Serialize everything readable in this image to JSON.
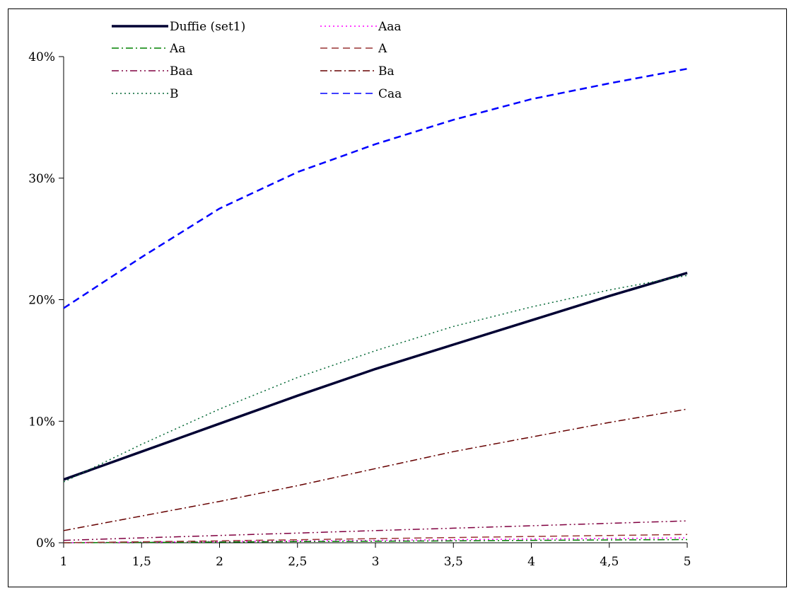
{
  "chart_data": {
    "type": "line",
    "title": "",
    "xlabel": "",
    "ylabel": "",
    "xlim": [
      1,
      5
    ],
    "ylim": [
      0,
      0.4
    ],
    "x_ticks": [
      {
        "value": 1,
        "label": "1"
      },
      {
        "value": 1.5,
        "label": "1,5"
      },
      {
        "value": 2,
        "label": "2"
      },
      {
        "value": 2.5,
        "label": "2,5"
      },
      {
        "value": 3,
        "label": "3"
      },
      {
        "value": 3.5,
        "label": "3,5"
      },
      {
        "value": 4,
        "label": "4"
      },
      {
        "value": 4.5,
        "label": "4,5"
      },
      {
        "value": 5,
        "label": "5"
      }
    ],
    "y_ticks": [
      {
        "value": 0,
        "label": "0%"
      },
      {
        "value": 0.1,
        "label": "10%"
      },
      {
        "value": 0.2,
        "label": "20%"
      },
      {
        "value": 0.3,
        "label": "30%"
      },
      {
        "value": 0.4,
        "label": "40%"
      }
    ],
    "grid": false,
    "legend_position": "top",
    "x": [
      1,
      1.5,
      2,
      2.5,
      3,
      3.5,
      4,
      4.5,
      5
    ],
    "series": [
      {
        "name": "Duffie (set1)",
        "color": "#000033",
        "dash": "solid",
        "values": [
          0.052,
          0.075,
          0.098,
          0.121,
          0.143,
          0.163,
          0.183,
          0.203,
          0.222
        ]
      },
      {
        "name": "Aaa",
        "color": "#ff00ff",
        "dash": "dot",
        "values": [
          0.0,
          0.0005,
          0.001,
          0.0015,
          0.002,
          0.0025,
          0.003,
          0.0035,
          0.004
        ]
      },
      {
        "name": "Aa",
        "color": "#008000",
        "dash": "dashdot",
        "values": [
          0.0,
          0.0003,
          0.0006,
          0.001,
          0.0013,
          0.0016,
          0.002,
          0.0023,
          0.0026
        ]
      },
      {
        "name": "A",
        "color": "#993333",
        "dash": "dash",
        "values": [
          0.0,
          0.0008,
          0.0016,
          0.0025,
          0.0034,
          0.0043,
          0.0052,
          0.006,
          0.0068
        ]
      },
      {
        "name": "Baa",
        "color": "#800040",
        "dash": "dashdotdot",
        "values": [
          0.002,
          0.004,
          0.006,
          0.008,
          0.01,
          0.012,
          0.014,
          0.016,
          0.018
        ]
      },
      {
        "name": "Ba",
        "color": "#660000",
        "dash": "dashdot",
        "values": [
          0.01,
          0.022,
          0.034,
          0.047,
          0.061,
          0.075,
          0.087,
          0.099,
          0.11
        ]
      },
      {
        "name": "B",
        "color": "#006633",
        "dash": "dot",
        "values": [
          0.05,
          0.081,
          0.11,
          0.136,
          0.158,
          0.178,
          0.194,
          0.208,
          0.22
        ]
      },
      {
        "name": "Caa",
        "color": "#0000ff",
        "dash": "dash",
        "values": [
          0.193,
          0.235,
          0.275,
          0.305,
          0.328,
          0.348,
          0.365,
          0.378,
          0.39
        ]
      }
    ]
  }
}
